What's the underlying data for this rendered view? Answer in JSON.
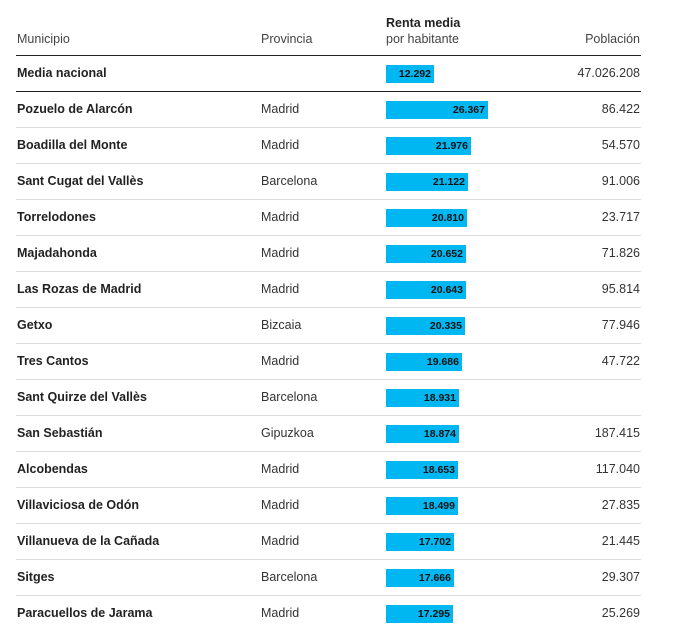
{
  "colors": {
    "bar": "#00b7f1",
    "text": "#222222"
  },
  "headers": {
    "municipio": "Municipio",
    "provincia": "Provincia",
    "renta_line1": "Renta media",
    "renta_line2": "por habitante",
    "poblacion": "Población"
  },
  "national": {
    "municipio": "Media nacional",
    "provincia": "",
    "renta": "12.292",
    "poblacion": "47.026.208"
  },
  "rows": [
    {
      "municipio": "Pozuelo de Alarcón",
      "provincia": "Madrid",
      "renta": "26.367",
      "poblacion": "86.422"
    },
    {
      "municipio": "Boadilla del Monte",
      "provincia": "Madrid",
      "renta": "21.976",
      "poblacion": "54.570"
    },
    {
      "municipio": "Sant Cugat del Vallès",
      "provincia": "Barcelona",
      "renta": "21.122",
      "poblacion": "91.006"
    },
    {
      "municipio": "Torrelodones",
      "provincia": "Madrid",
      "renta": "20.810",
      "poblacion": "23.717"
    },
    {
      "municipio": "Majadahonda",
      "provincia": "Madrid",
      "renta": "20.652",
      "poblacion": "71.826"
    },
    {
      "municipio": "Las Rozas de Madrid",
      "provincia": "Madrid",
      "renta": "20.643",
      "poblacion": "95.814"
    },
    {
      "municipio": "Getxo",
      "provincia": "Bizcaia",
      "renta": "20.335",
      "poblacion": "77.946"
    },
    {
      "municipio": "Tres Cantos",
      "provincia": "Madrid",
      "renta": "19.686",
      "poblacion": "47.722"
    },
    {
      "municipio": "Sant Quirze del Vallès",
      "provincia": "Barcelona",
      "renta": "18.931",
      "poblacion": ""
    },
    {
      "municipio": "San Sebastián",
      "provincia": "Gipuzkoa",
      "renta": "18.874",
      "poblacion": "187.415"
    },
    {
      "municipio": "Alcobendas",
      "provincia": "Madrid",
      "renta": "18.653",
      "poblacion": "117.040"
    },
    {
      "municipio": "Villaviciosa de Odón",
      "provincia": "Madrid",
      "renta": "18.499",
      "poblacion": "27.835"
    },
    {
      "municipio": "Villanueva de la Cañada",
      "provincia": "Madrid",
      "renta": "17.702",
      "poblacion": "21.445"
    },
    {
      "municipio": "Sitges",
      "provincia": "Barcelona",
      "renta": "17.666",
      "poblacion": "29.307"
    },
    {
      "municipio": "Paracuellos de Jarama",
      "provincia": "Madrid",
      "renta": "17.295",
      "poblacion": "25.269"
    }
  ],
  "chart_data": {
    "type": "bar",
    "categories": [
      "Media nacional",
      "Pozuelo de Alarcón",
      "Boadilla del Monte",
      "Sant Cugat del Vallès",
      "Torrelodones",
      "Majadahonda",
      "Las Rozas de Madrid",
      "Getxo",
      "Tres Cantos",
      "Sant Quirze del Vallès",
      "San Sebastián",
      "Alcobendas",
      "Villaviciosa de Odón",
      "Villanueva de la Cañada",
      "Sitges",
      "Paracuellos de Jarama"
    ],
    "values": [
      12292,
      26367,
      21976,
      21122,
      20810,
      20652,
      20643,
      20335,
      19686,
      18931,
      18874,
      18653,
      18499,
      17702,
      17666,
      17295
    ],
    "title": "",
    "xlabel": "",
    "ylabel": "Renta media por habitante",
    "xlim": [
      0,
      26367
    ]
  }
}
